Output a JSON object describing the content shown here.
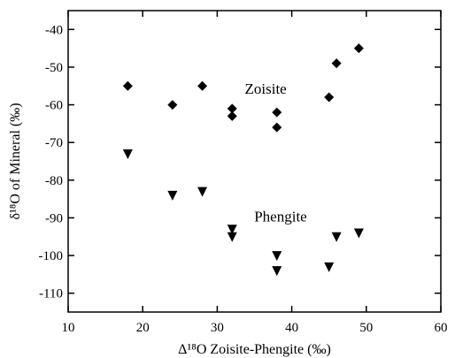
{
  "chart_data": {
    "type": "scatter",
    "xlabel": "Δ¹⁸O Zoisite-Phengite (‰)",
    "ylabel": "δ¹⁸O of Mineral (‰)",
    "xlim": [
      10,
      60
    ],
    "ylim": [
      -115,
      -35
    ],
    "x_ticks": [
      10,
      20,
      30,
      40,
      50,
      60
    ],
    "y_ticks": [
      -110,
      -100,
      -90,
      -80,
      -70,
      -60,
      -50,
      -40
    ],
    "grid": false,
    "series": [
      {
        "marker": "diamond",
        "points": [
          {
            "x": 18,
            "y": -55
          },
          {
            "x": 24,
            "y": -60
          },
          {
            "x": 28,
            "y": -55
          },
          {
            "x": 32,
            "y": -61
          },
          {
            "x": 32,
            "y": -63
          },
          {
            "x": 38,
            "y": -62
          },
          {
            "x": 38,
            "y": -66
          },
          {
            "x": 45,
            "y": -58
          },
          {
            "x": 46,
            "y": -49
          },
          {
            "x": 49,
            "y": -45
          }
        ]
      },
      {
        "marker": "triangle-down",
        "points": [
          {
            "x": 18,
            "y": -73
          },
          {
            "x": 24,
            "y": -84
          },
          {
            "x": 28,
            "y": -83
          },
          {
            "x": 32,
            "y": -93
          },
          {
            "x": 32,
            "y": -95
          },
          {
            "x": 38,
            "y": -100
          },
          {
            "x": 38,
            "y": -104
          },
          {
            "x": 45,
            "y": -103
          },
          {
            "x": 46,
            "y": -95
          },
          {
            "x": 49,
            "y": -94
          }
        ]
      }
    ],
    "annotations": [
      {
        "text": "Zoisite",
        "x": 36.5,
        "y": -57
      },
      {
        "text": "Phengite",
        "x": 38.5,
        "y": -91
      }
    ]
  }
}
